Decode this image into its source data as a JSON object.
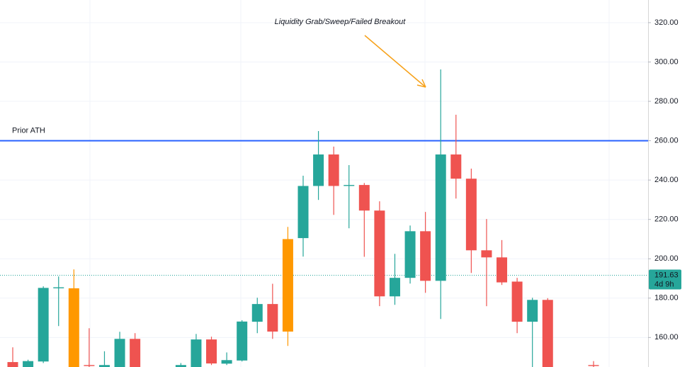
{
  "chart_data": {
    "type": "candlestick",
    "categories": [
      null,
      null,
      null,
      null,
      null,
      null,
      null,
      null,
      null,
      null,
      null,
      null,
      null,
      null,
      null,
      null,
      null,
      null,
      null,
      null,
      null,
      null,
      null,
      null,
      null,
      null,
      null,
      null,
      null,
      null,
      null,
      null,
      null,
      null,
      null,
      null,
      null,
      null,
      null
    ],
    "series": [
      {
        "open": [
          147.5,
          145,
          147.8,
          185,
          185,
          146,
          145,
          145,
          159.3,
          null,
          null,
          145,
          145,
          159,
          146.7,
          148.3,
          168,
          177,
          163,
          210.5,
          237,
          253,
          237.5,
          237.5,
          224.5,
          180.9,
          190.3,
          214,
          188.8,
          253,
          240.7,
          204.3,
          200.7,
          188.4,
          168,
          179.1,
          null,
          null,
          146
        ],
        "high": [
          155,
          148.7,
          186,
          191,
          194.6,
          164.7,
          153,
          162.9,
          162.2,
          null,
          null,
          147,
          161.8,
          160.4,
          152.4,
          168.8,
          180.2,
          187.3,
          216.2,
          242.2,
          264.9,
          257,
          247.6,
          238.5,
          229.2,
          202.5,
          216.9,
          223.8,
          296.2,
          273.2,
          245.8,
          220.2,
          209.5,
          190.3,
          180.2,
          180,
          null,
          null,
          148
        ],
        "low": [
          145,
          145,
          147,
          165.8,
          145,
          145,
          145,
          145,
          145,
          null,
          null,
          145,
          145,
          146,
          146,
          147.8,
          162.2,
          159.3,
          155.7,
          201.1,
          229.9,
          222.3,
          215.5,
          201,
          175.9,
          176.6,
          187.4,
          182.7,
          169.4,
          230.6,
          192.8,
          175.9,
          186.7,
          162.2,
          145,
          145,
          null,
          null,
          145
        ],
        "close": [
          145,
          148,
          185.2,
          185.5,
          145,
          145.5,
          146,
          159.3,
          145,
          null,
          null,
          146,
          159,
          146.8,
          148.5,
          168.1,
          177,
          163,
          210,
          237,
          253,
          237,
          237,
          224.5,
          180.9,
          190.3,
          214,
          188.8,
          253,
          240.7,
          204.3,
          200.7,
          188,
          168,
          179.1,
          145,
          null,
          null,
          145.5
        ],
        "colors": [
          "#ef5350",
          "#26a69a",
          "#26a69a",
          "#26a69a",
          "#ff9800",
          "#ef5350",
          "#26a69a",
          "#26a69a",
          "#ef5350",
          null,
          null,
          "#26a69a",
          "#26a69a",
          "#ef5350",
          "#26a69a",
          "#26a69a",
          "#26a69a",
          "#ef5350",
          "#ff9800",
          "#26a69a",
          "#26a69a",
          "#ef5350",
          "#26a69a",
          "#ef5350",
          "#ef5350",
          "#26a69a",
          "#26a69a",
          "#ef5350",
          "#26a69a",
          "#ef5350",
          "#ef5350",
          "#ef5350",
          "#ef5350",
          "#ef5350",
          "#26a69a",
          "#ef5350",
          null,
          null,
          "#ef5350"
        ]
      }
    ],
    "ylim": [
      145,
      331.5
    ],
    "yticks": [
      {
        "value": 160,
        "label": "160.00"
      },
      {
        "value": 180,
        "label": "180.00"
      },
      {
        "value": 200,
        "label": "200.00"
      },
      {
        "value": 220,
        "label": "220.00"
      },
      {
        "value": 240,
        "label": "240.00"
      },
      {
        "value": 260,
        "label": "260.00"
      },
      {
        "value": 280,
        "label": "280.00"
      },
      {
        "value": 300,
        "label": "300.00"
      },
      {
        "value": 320,
        "label": "320.00"
      }
    ],
    "grid": true,
    "hlines": [
      {
        "value": 260,
        "label": "Prior ATH",
        "color": "#2962ff"
      }
    ],
    "annotation": {
      "text": "Liquidity Grab/Sweep/Failed Breakout",
      "color": "#f7a21b"
    },
    "last_price": 191.63,
    "last_price_color": "#26a69a",
    "countdown": "4d 9h"
  }
}
